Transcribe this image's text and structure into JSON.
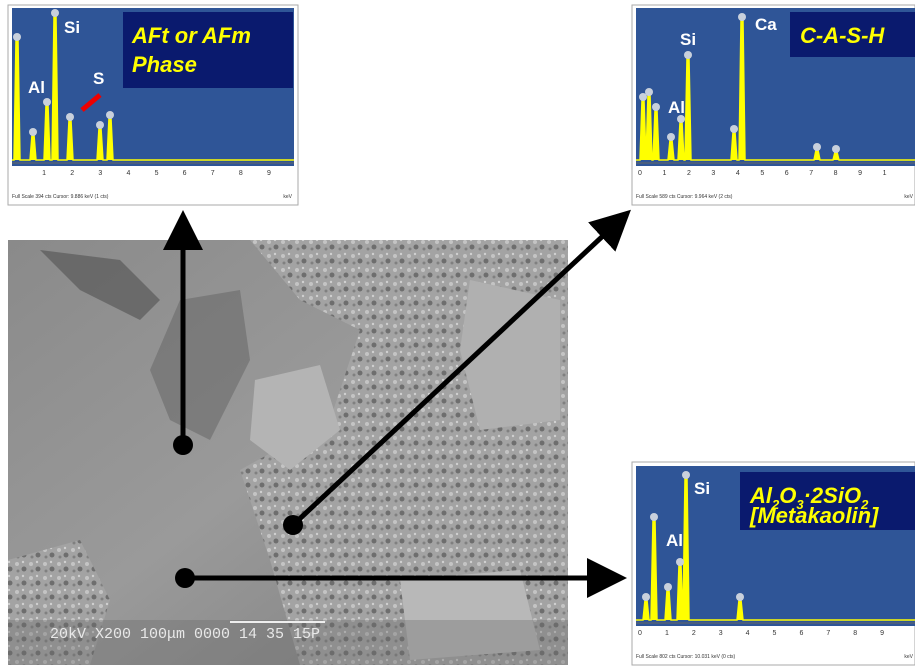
{
  "panels": [
    {
      "elements": [
        "Si",
        "Al",
        "S"
      ],
      "title": [
        "AFt or AFm",
        "Phase"
      ],
      "ticks": [
        "1",
        "2",
        "3",
        "4",
        "5",
        "6",
        "7",
        "8",
        "9"
      ],
      "footer": "Full Scale 394 cts  Cursor: 9.886 keV (1 cts)",
      "unit": "keV"
    },
    {
      "elements": [
        "Si",
        "Ca",
        "Al"
      ],
      "title": [
        "C-A-S-H"
      ],
      "ticks": [
        "0",
        "1",
        "2",
        "3",
        "4",
        "5",
        "6",
        "7",
        "8",
        "9",
        "1"
      ],
      "footer": "Full Scale 589 cts  Cursor: 9.964 keV (2 cts)",
      "unit": "keV"
    },
    {
      "elements": [
        "Si",
        "Al"
      ],
      "title": [
        "Al",
        "2",
        "O",
        "3",
        "·2SiO",
        "2",
        "[Metakaolin]"
      ],
      "ticks": [
        "0",
        "1",
        "2",
        "3",
        "4",
        "5",
        "6",
        "7",
        "8",
        "9"
      ],
      "footer": "Full Scale 802 cts  Cursor: 10.031 keV (0 cts)",
      "unit": "keV"
    }
  ],
  "sem": {
    "caption": "20kV   X200  100μm  0000 14 35   15P"
  }
}
